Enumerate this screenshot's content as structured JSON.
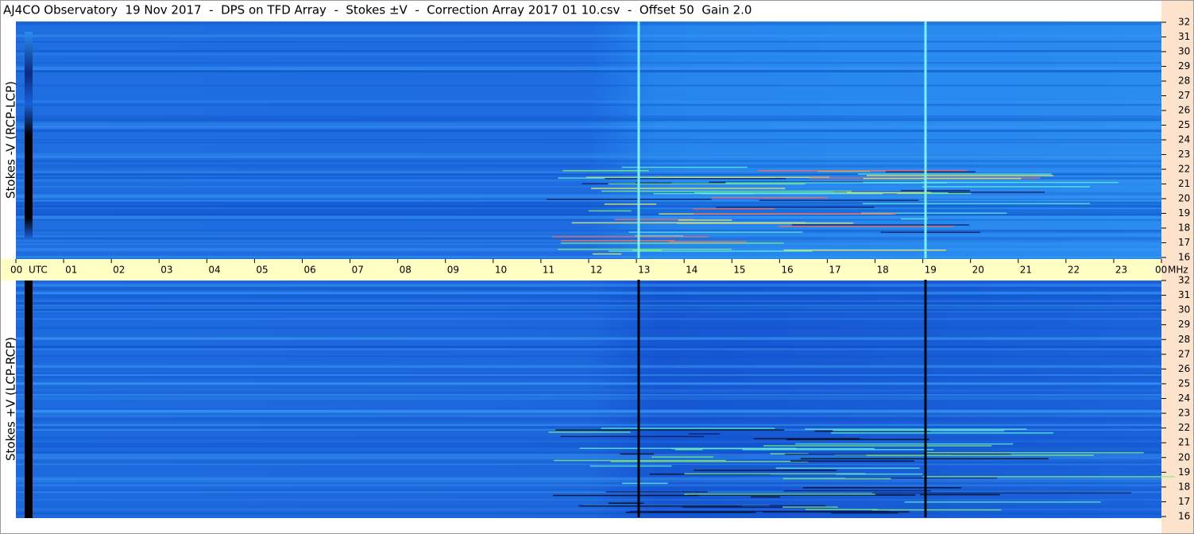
{
  "chart_data": [
    {
      "type": "spectrogram",
      "title": "AJ4CO Observatory  19 Nov 2017  -  DPS on TFD Array  -  Stokes ±V  -  Correction Array 2017 01 10.csv  -  Offset 50  Gain 2.0",
      "ylabel": "Stokes -V (RCP-LCP)",
      "xlabel": "UTC",
      "yunit": "MHz",
      "xlim": [
        0,
        24
      ],
      "xticks": [
        {
          "value": 0,
          "label": "00"
        },
        {
          "value": 1,
          "label": "01"
        },
        {
          "value": 2,
          "label": "02"
        },
        {
          "value": 3,
          "label": "03"
        },
        {
          "value": 4,
          "label": "04"
        },
        {
          "value": 5,
          "label": "05"
        },
        {
          "value": 6,
          "label": "06"
        },
        {
          "value": 7,
          "label": "07"
        },
        {
          "value": 8,
          "label": "08"
        },
        {
          "value": 9,
          "label": "09"
        },
        10,
        11,
        12,
        13,
        14,
        15,
        16,
        17,
        18,
        19,
        20,
        21,
        22,
        23,
        {
          "value": 24,
          "label": "00"
        }
      ],
      "ylim": [
        16,
        32
      ],
      "yticks": [
        16,
        17,
        18,
        19,
        20,
        21,
        22,
        23,
        24,
        25,
        26,
        27,
        28,
        29,
        30,
        31,
        32
      ]
    },
    {
      "type": "spectrogram",
      "ylabel": "Stokes +V (LCP-RCP)",
      "xlim": [
        0,
        24
      ],
      "ylim": [
        16,
        32
      ],
      "yticks": [
        16,
        17,
        18,
        19,
        20,
        21,
        22,
        23,
        24,
        25,
        26,
        27,
        28,
        29,
        30,
        31,
        32
      ]
    }
  ]
}
